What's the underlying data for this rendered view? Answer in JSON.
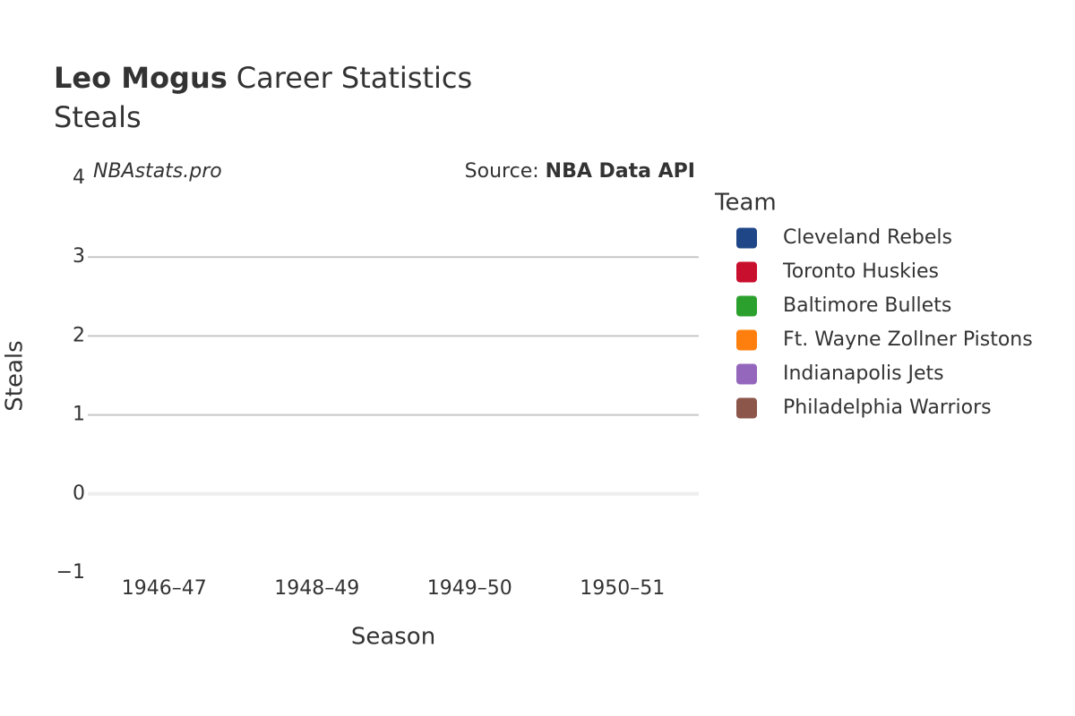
{
  "chart_data": {
    "type": "bar",
    "title": {
      "bold": "Leo Mogus",
      "text": "Career Statistics"
    },
    "subtitle": "Steals",
    "watermark": "NBAstats.pro",
    "source_label": "Source:",
    "source": "NBA Data API",
    "x_label": "Season",
    "y_label": "Steals",
    "legend_title": "Team",
    "categories": [
      "1946–47",
      "1948–49",
      "1949–50",
      "1950–51"
    ],
    "series": [
      {
        "name": "Cleveland Rebels",
        "color": "#1f4788",
        "values": [
          0,
          null,
          null,
          null
        ]
      },
      {
        "name": "Toronto Huskies",
        "color": "#c8102e",
        "values": [
          0,
          null,
          null,
          null
        ]
      },
      {
        "name": "Baltimore Bullets",
        "color": "#2ca02c",
        "values": [
          null,
          0,
          null,
          null
        ]
      },
      {
        "name": "Ft. Wayne Zollner Pistons",
        "color": "#ff7f0e",
        "values": [
          null,
          0,
          null,
          null
        ]
      },
      {
        "name": "Indianapolis Jets",
        "color": "#9467bd",
        "values": [
          null,
          null,
          0,
          null
        ]
      },
      {
        "name": "Philadelphia Warriors",
        "color": "#8c564b",
        "values": [
          null,
          null,
          0,
          0
        ]
      }
    ],
    "ylim": [
      -1,
      4
    ],
    "yticks": [
      {
        "value": -1,
        "label": "−1"
      },
      0,
      1,
      2,
      3,
      4
    ],
    "grid": true
  }
}
